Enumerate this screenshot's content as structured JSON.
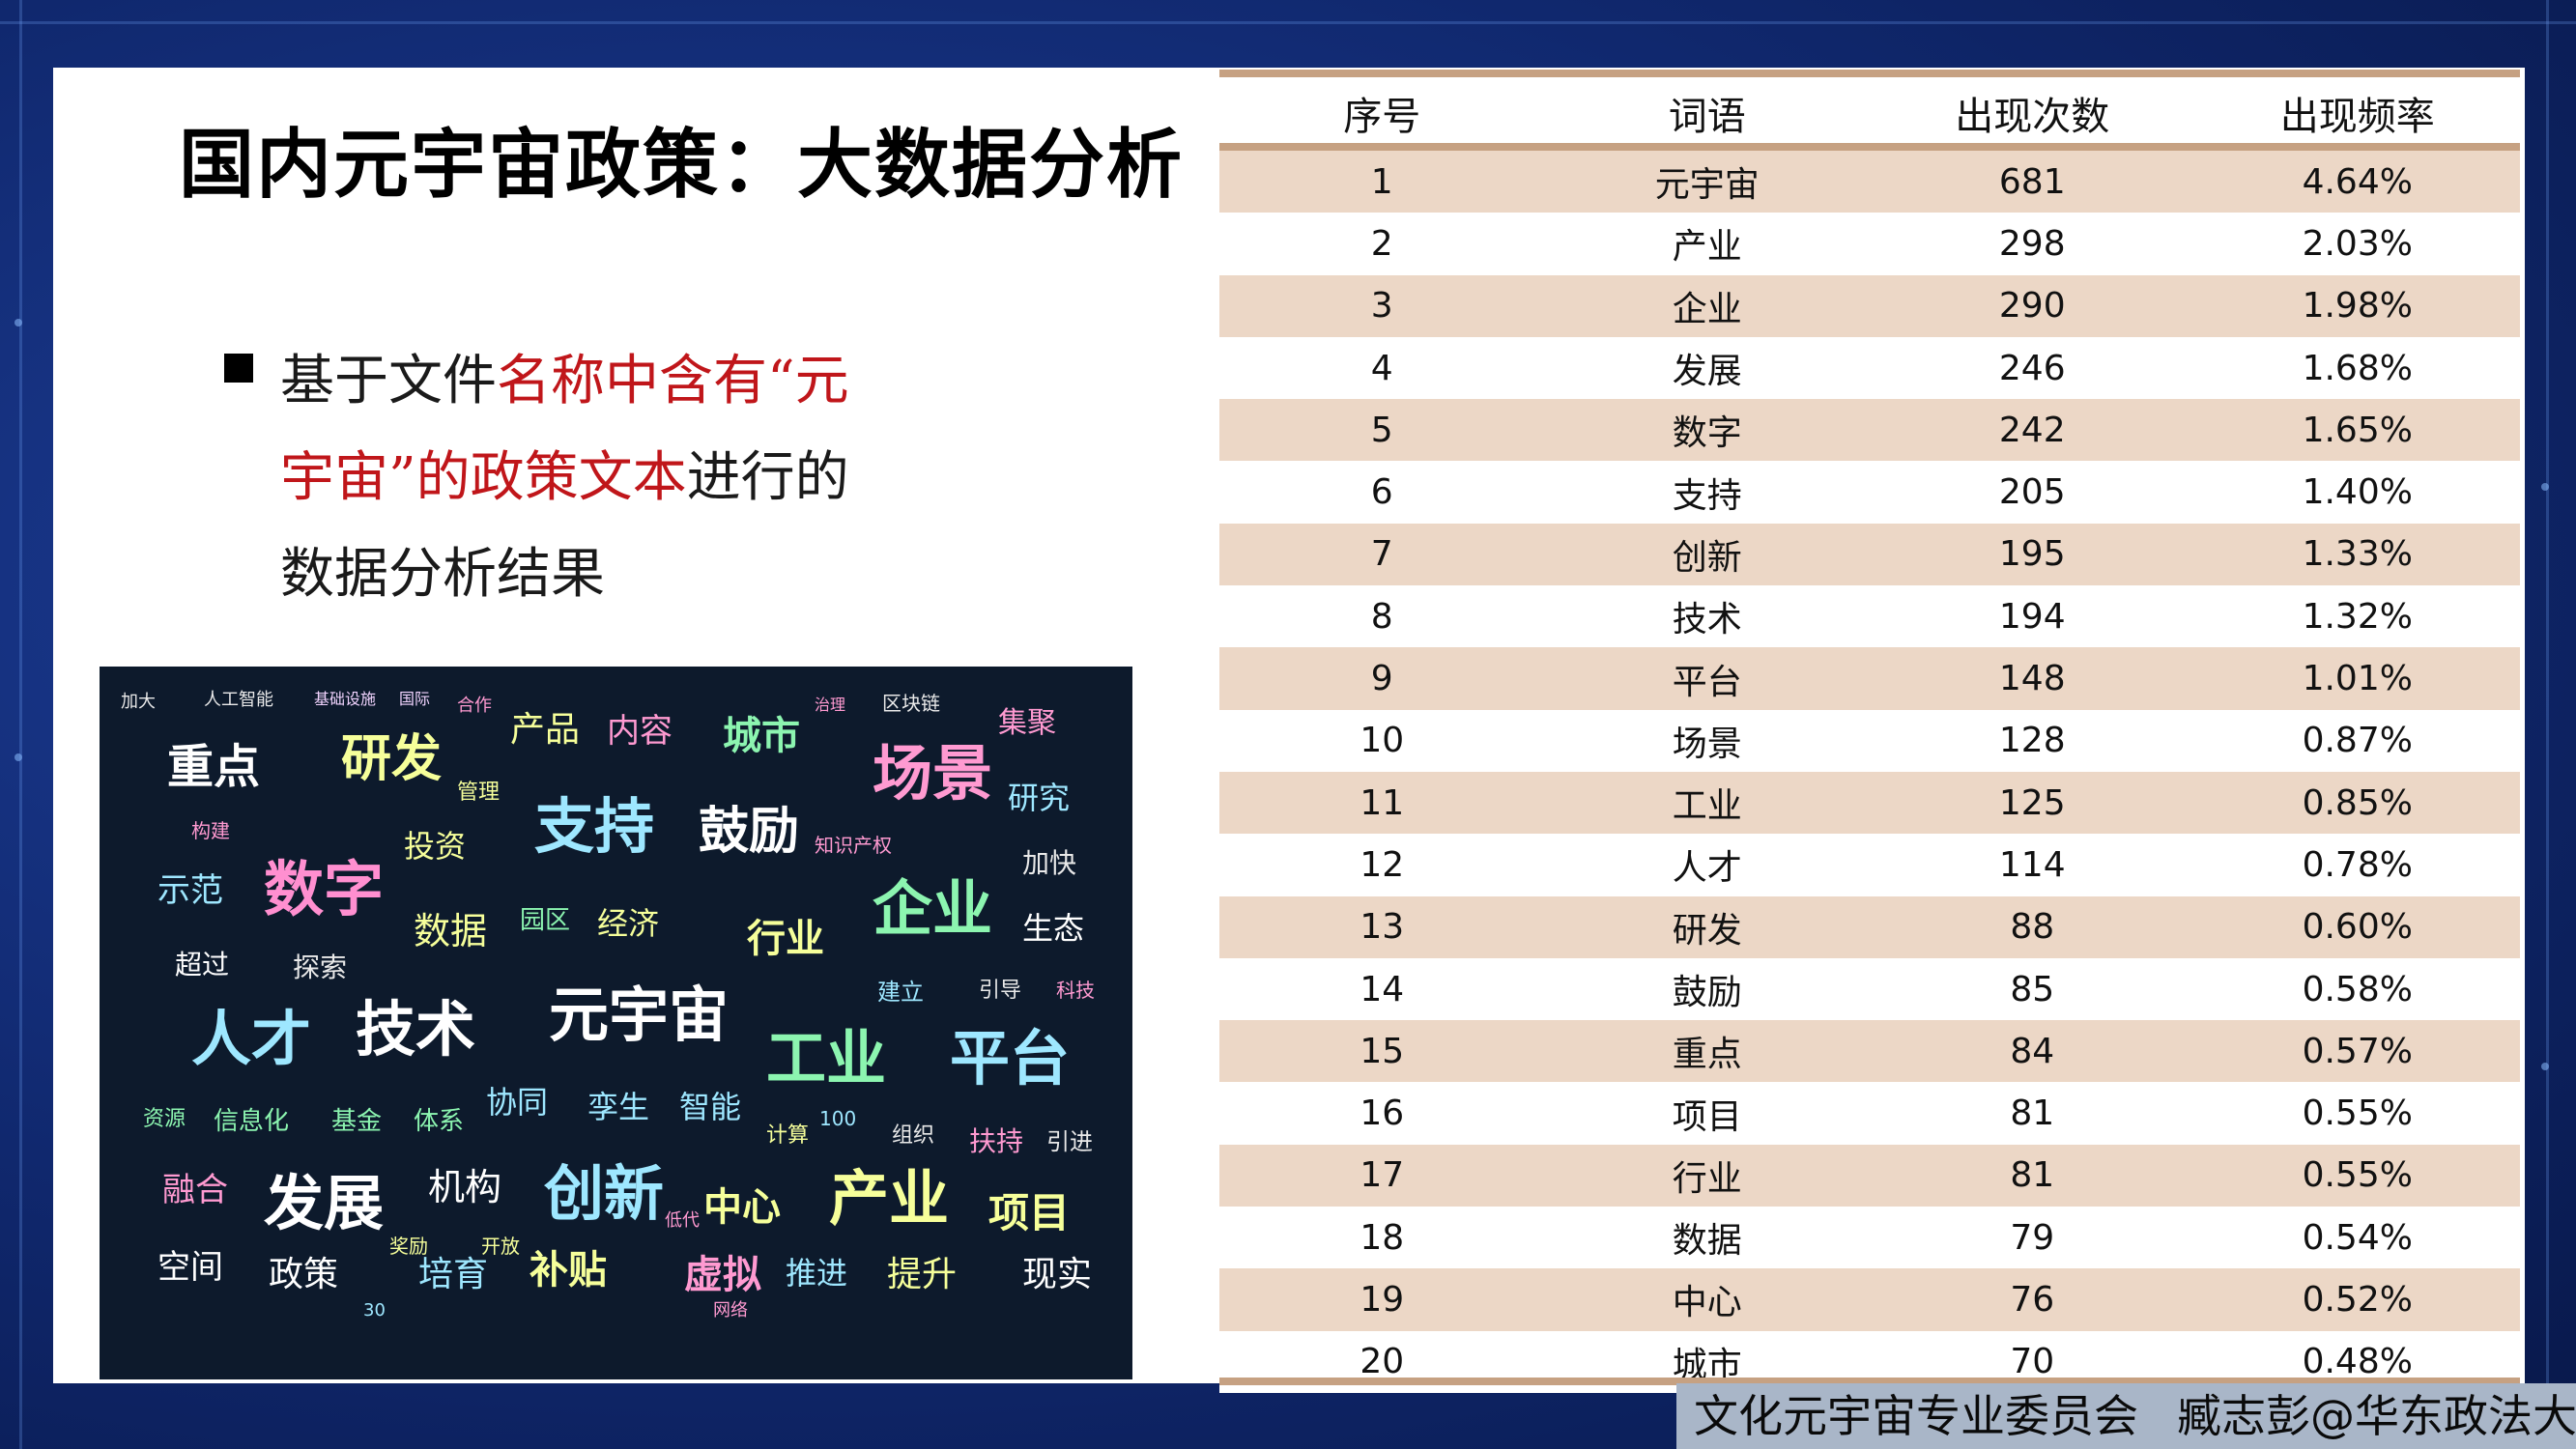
{
  "title": "国内元宇宙政策：大数据分析",
  "bullet": {
    "part1": "基于文件",
    "part2_red": "名称中含有“元宇宙”的政策文本",
    "part3": "进行的数据分析结果"
  },
  "table": {
    "headers": [
      "序号",
      "词语",
      "出现次数",
      "出现频率"
    ],
    "rows": [
      [
        "1",
        "元宇宙",
        "681",
        "4.64%"
      ],
      [
        "2",
        "产业",
        "298",
        "2.03%"
      ],
      [
        "3",
        "企业",
        "290",
        "1.98%"
      ],
      [
        "4",
        "发展",
        "246",
        "1.68%"
      ],
      [
        "5",
        "数字",
        "242",
        "1.65%"
      ],
      [
        "6",
        "支持",
        "205",
        "1.40%"
      ],
      [
        "7",
        "创新",
        "195",
        "1.33%"
      ],
      [
        "8",
        "技术",
        "194",
        "1.32%"
      ],
      [
        "9",
        "平台",
        "148",
        "1.01%"
      ],
      [
        "10",
        "场景",
        "128",
        "0.87%"
      ],
      [
        "11",
        "工业",
        "125",
        "0.85%"
      ],
      [
        "12",
        "人才",
        "114",
        "0.78%"
      ],
      [
        "13",
        "研发",
        "88",
        "0.60%"
      ],
      [
        "14",
        "鼓励",
        "85",
        "0.58%"
      ],
      [
        "15",
        "重点",
        "84",
        "0.57%"
      ],
      [
        "16",
        "项目",
        "81",
        "0.55%"
      ],
      [
        "17",
        "行业",
        "81",
        "0.55%"
      ],
      [
        "18",
        "数据",
        "79",
        "0.54%"
      ],
      [
        "19",
        "中心",
        "76",
        "0.52%"
      ],
      [
        "20",
        "城市",
        "70",
        "0.48%"
      ]
    ]
  },
  "wordcloud": [
    {
      "t": "加大",
      "c": "#e9e9e9"
    },
    {
      "t": "人工智能",
      "c": "#e9e9e9"
    },
    {
      "t": "基础设施",
      "c": "#f2d4ff"
    },
    {
      "t": "国际",
      "c": "#f2d4ff"
    },
    {
      "t": "合作",
      "c": "#ff9ad1"
    },
    {
      "t": "产品",
      "c": "#f6ff9a"
    },
    {
      "t": "内容",
      "c": "#ff9ad1"
    },
    {
      "t": "治理",
      "c": "#ff9ad1"
    },
    {
      "t": "区块链",
      "c": "#e9e9e9"
    },
    {
      "t": "城市",
      "c": "#8cf5b0"
    },
    {
      "t": "集聚",
      "c": "#ff9ad1"
    },
    {
      "t": "重点",
      "c": "#ffffff"
    },
    {
      "t": "研发",
      "c": "#f6ff9a"
    },
    {
      "t": "场景",
      "c": "#ff9ad1"
    },
    {
      "t": "管理",
      "c": "#f6ff9a"
    },
    {
      "t": "支持",
      "c": "#9ee7ff"
    },
    {
      "t": "鼓励",
      "c": "#ffffff"
    },
    {
      "t": "研究",
      "c": "#9ee7ff"
    },
    {
      "t": "构建",
      "c": "#ff9ad1"
    },
    {
      "t": "投资",
      "c": "#f6ff9a"
    },
    {
      "t": "知识产权",
      "c": "#ff9ad1"
    },
    {
      "t": "加快",
      "c": "#e9e9e9"
    },
    {
      "t": "示范",
      "c": "#9ee7ff"
    },
    {
      "t": "数字",
      "c": "#ff8fd0"
    },
    {
      "t": "企业",
      "c": "#8cf5b0"
    },
    {
      "t": "数据",
      "c": "#f6ff9a"
    },
    {
      "t": "园区",
      "c": "#8cf5b0"
    },
    {
      "t": "经济",
      "c": "#f6ff9a"
    },
    {
      "t": "行业",
      "c": "#f6ff9a"
    },
    {
      "t": "生态",
      "c": "#ffffff"
    },
    {
      "t": "超过",
      "c": "#ffffff"
    },
    {
      "t": "探索",
      "c": "#e9e9e9"
    },
    {
      "t": "元宇宙",
      "c": "#ffffff"
    },
    {
      "t": "建立",
      "c": "#9ee7ff"
    },
    {
      "t": "引导",
      "c": "#e9e9e9"
    },
    {
      "t": "科技",
      "c": "#ff9ad1"
    },
    {
      "t": "人才",
      "c": "#9ee7ff"
    },
    {
      "t": "技术",
      "c": "#ffffff"
    },
    {
      "t": "工业",
      "c": "#8cf5b0"
    },
    {
      "t": "平台",
      "c": "#9ee7ff"
    },
    {
      "t": "资源",
      "c": "#8cf5b0"
    },
    {
      "t": "信息化",
      "c": "#8cf5b0"
    },
    {
      "t": "基金",
      "c": "#8cf5b0"
    },
    {
      "t": "体系",
      "c": "#8cf5b0"
    },
    {
      "t": "协同",
      "c": "#9ee7ff"
    },
    {
      "t": "孪生",
      "c": "#9ee7ff"
    },
    {
      "t": "智能",
      "c": "#9ee7ff"
    },
    {
      "t": "计算",
      "c": "#f6ff9a"
    },
    {
      "t": "组织",
      "c": "#e9e9e9"
    },
    {
      "t": "扶持",
      "c": "#ff9ad1"
    },
    {
      "t": "引进",
      "c": "#e9e9e9"
    },
    {
      "t": "融合",
      "c": "#ff9ad1"
    },
    {
      "t": "发展",
      "c": "#ffffff"
    },
    {
      "t": "机构",
      "c": "#ffffff"
    },
    {
      "t": "创新",
      "c": "#9ee7ff"
    },
    {
      "t": "中心",
      "c": "#f6ff9a"
    },
    {
      "t": "产业",
      "c": "#f6ff9a"
    },
    {
      "t": "项目",
      "c": "#f6ff9a"
    },
    {
      "t": "空间",
      "c": "#ffffff"
    },
    {
      "t": "政策",
      "c": "#ffffff"
    },
    {
      "t": "培育",
      "c": "#9ee7ff"
    },
    {
      "t": "补贴",
      "c": "#f6ff9a"
    },
    {
      "t": "虚拟",
      "c": "#ff9ad1"
    },
    {
      "t": "推进",
      "c": "#9ee7ff"
    },
    {
      "t": "提升",
      "c": "#f6ff9a"
    },
    {
      "t": "现实",
      "c": "#ffffff"
    },
    {
      "t": "奖励",
      "c": "#f6ff9a"
    },
    {
      "t": "开放",
      "c": "#f6ff9a"
    },
    {
      "t": "30",
      "c": "#9ee7ff"
    },
    {
      "t": "100",
      "c": "#9ee7ff"
    },
    {
      "t": "低代",
      "c": "#ff9ad1"
    },
    {
      "t": "网络",
      "c": "#ff9ad1"
    }
  ],
  "footer": {
    "left": "文化元宇宙专业委员会",
    "right": "臧志彭@华东政法大学"
  }
}
